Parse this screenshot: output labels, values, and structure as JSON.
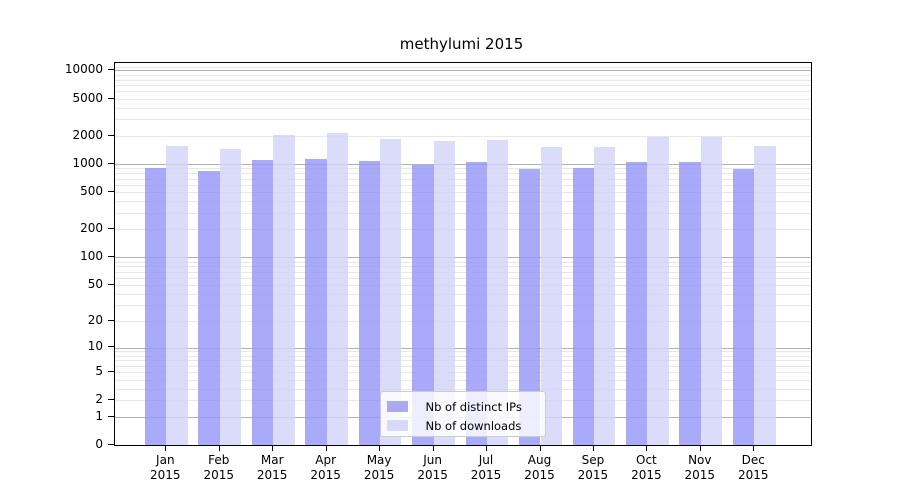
{
  "chart_data": {
    "type": "bar",
    "title": "methylumi 2015",
    "categories": [
      "Jan",
      "Feb",
      "Mar",
      "Apr",
      "May",
      "Jun",
      "Jul",
      "Aug",
      "Sep",
      "Oct",
      "Nov",
      "Dec"
    ],
    "x_sublabel": "2015",
    "series": [
      {
        "name": "Nb of distinct IPs",
        "color": "rgba(149,149,249,0.8)",
        "legend_color": "#aaaaef",
        "values": [
          900,
          848,
          1100,
          1120,
          1085,
          980,
          1040,
          885,
          905,
          1065,
          1050,
          890
        ]
      },
      {
        "name": "Nb of downloads",
        "color": "rgba(210,210,249,0.8)",
        "legend_color": "#d8d8f8",
        "values": [
          1565,
          1450,
          2040,
          2140,
          1850,
          1775,
          1820,
          1505,
          1520,
          1945,
          1945,
          1555
        ]
      }
    ],
    "y_ticks": [
      0,
      1,
      2,
      5,
      10,
      20,
      50,
      100,
      200,
      500,
      1000,
      2000,
      5000,
      10000
    ],
    "y_scale": "log1p",
    "ylim": [
      0,
      12000
    ],
    "grid": true,
    "legend_position": "lower center",
    "colors": {
      "major_gridline": "#b2b2b2",
      "minor_gridline": "#e7e7e7",
      "axis": "#000000",
      "text": "#000000"
    }
  }
}
